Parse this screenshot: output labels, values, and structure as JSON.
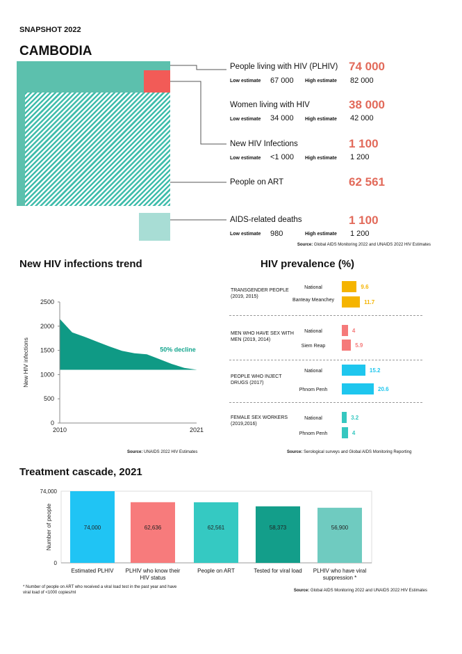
{
  "header": {
    "snapshot": "SNAPSHOT 2022",
    "country": "CAMBODIA"
  },
  "key_stats": {
    "plhiv": {
      "label": "People living with HIV (PLHIV)",
      "value": "74 000",
      "low_label": "Low estimate",
      "low": "67 000",
      "high_label": "High estimate",
      "high": "82 000"
    },
    "women": {
      "label": "Women living with HIV",
      "value": "38 000",
      "low_label": "Low estimate",
      "low": "34 000",
      "high_label": "High estimate",
      "high": "42 000"
    },
    "infections": {
      "label": "New HIV Infections",
      "value": "1 100",
      "low_label": "Low estimate",
      "low": "<1 000",
      "high_label": "High estimate",
      "high": "1 200"
    },
    "art": {
      "label": "People on ART",
      "value": "62 561"
    },
    "deaths": {
      "label": "AIDS-related deaths",
      "value": "1 100",
      "low_label": "Low estimate",
      "low": "980",
      "high_label": "High estimate",
      "high": "1 200"
    },
    "source_bold": "Source:",
    "source_text": " Global AIDS Monitoring 2022 and UNAIDS 2022 HIV Estimates",
    "colors": {
      "plhiv": "#5cc0ad",
      "infections": "#f25b57",
      "art": "#3fbcab",
      "deaths": "#a8ddd5",
      "value": "#e26a5a"
    }
  },
  "trend": {
    "title": "New HIV infections trend",
    "source_bold": "Source:",
    "source_text": " UNAIDS 2022 HIV Estimates"
  },
  "prevalence": {
    "title": "HIV prevalence (%)",
    "source_bold": "Source:",
    "source_text": " Serological surveys and Global AIDS Monitoring Reporting",
    "groups": [
      {
        "name": "TRANSGENDER PEOPLE (2019, 2015)",
        "color": "#f5b400",
        "rows": [
          {
            "label": "National",
            "value": 9.6
          },
          {
            "label": "Banteay Meanchey",
            "value": 11.7
          }
        ]
      },
      {
        "name": "MEN WHO HAVE SEX WITH MEN (2019, 2014)",
        "color": "#f57a7a",
        "rows": [
          {
            "label": "National",
            "value": 4
          },
          {
            "label": "Siem Reap",
            "value": 5.9
          }
        ]
      },
      {
        "name": "PEOPLE WHO INJECT DRUGS (2017)",
        "color": "#1ec6ee",
        "rows": [
          {
            "label": "National",
            "value": 15.2
          },
          {
            "label": "Phnom Penh",
            "value": 20.6
          }
        ]
      },
      {
        "name": "FEMALE SEX WORKERS (2019,2016)",
        "color": "#35c7c0",
        "rows": [
          {
            "label": "National",
            "value": 3.2
          },
          {
            "label": "Phnom Penh",
            "value": 4
          }
        ]
      }
    ]
  },
  "cascade": {
    "title": "Treatment cascade, 2021",
    "footnote": "* Number of people on ART who received a viral load test in the past year and have viral load of <1000 copies/ml",
    "source_bold": "Source:",
    "source_text": " Global AIDS Monitoring 2022 and UNAIDS 2022 HIV Estimates"
  },
  "chart_data": [
    {
      "type": "area",
      "title": "New HIV infections trend",
      "xlabel": "",
      "ylabel": "New HIV infections",
      "xlim": [
        2010,
        2021
      ],
      "ylim": [
        0,
        2500
      ],
      "yticks": [
        0,
        500,
        1000,
        1500,
        2000,
        2500
      ],
      "xticks": [
        2010,
        2021
      ],
      "x": [
        2010,
        2011,
        2012,
        2013,
        2014,
        2015,
        2016,
        2017,
        2018,
        2019,
        2020,
        2021
      ],
      "values": [
        2150,
        1870,
        1780,
        1680,
        1580,
        1490,
        1440,
        1420,
        1320,
        1220,
        1140,
        1100
      ],
      "baseline": 1100,
      "annotation": "50% decline",
      "color": "#0f9a85",
      "annotation_color": "#14a58e"
    },
    {
      "type": "bar",
      "title": "HIV prevalence (%)",
      "orientation": "horizontal",
      "xlim": [
        0,
        25
      ],
      "categories": [
        "National",
        "Banteay Meanchey",
        "National",
        "Siem Reap",
        "National",
        "Phnom Penh",
        "National",
        "Phnom Penh"
      ],
      "values": [
        9.6,
        11.7,
        4,
        5.9,
        15.2,
        20.6,
        3.2,
        4
      ]
    },
    {
      "type": "bar",
      "title": "Treatment cascade, 2021",
      "ylabel": "Number of people",
      "ylim": [
        0,
        74000
      ],
      "yticks": [
        0,
        74000
      ],
      "ytick_labels": [
        "0",
        "74,000"
      ],
      "categories": [
        "Estimated PLHIV",
        "PLHIV who know their HIV status",
        "People on ART",
        "Tested for viral load",
        "PLHIV who have viral suppression *"
      ],
      "values": [
        74000,
        62636,
        62561,
        58373,
        56900
      ],
      "value_labels": [
        "74,000",
        "62,636",
        "62,561",
        "58,373",
        "56,900"
      ],
      "colors": [
        "#20c4f4",
        "#f77b7c",
        "#35c9c2",
        "#139e8a",
        "#6fcbc0"
      ]
    }
  ]
}
